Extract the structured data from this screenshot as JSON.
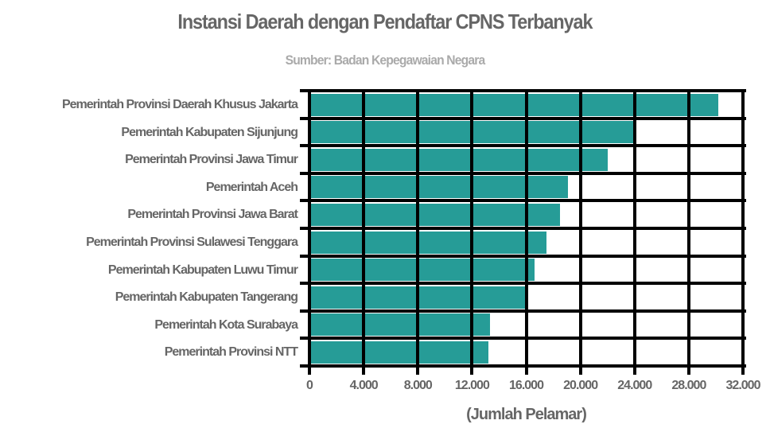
{
  "chart_data": {
    "type": "bar",
    "orientation": "horizontal",
    "title": "Instansi Daerah dengan Pendaftar CPNS Terbanyak",
    "subtitle": "Sumber: Badan Kepegawaian Negara",
    "xlabel": "(Jumlah Pelamar)",
    "ylabel": "",
    "xlim": [
      0,
      32000
    ],
    "xticks": [
      0,
      4000,
      8000,
      12000,
      16000,
      20000,
      24000,
      28000,
      32000
    ],
    "xtick_labels": [
      "0",
      "4.000",
      "8.000",
      "12.000",
      "16.000",
      "20.000",
      "24.000",
      "28.000",
      "32.000"
    ],
    "grid": true,
    "legend": null,
    "bar_color": "#269c97",
    "categories": [
      "Pemerintah Provinsi Daerah Khusus Jakarta",
      "Pemerintah Kabupaten Sijunjung",
      "Pemerintah Provinsi Jawa Timur",
      "Pemerintah Aceh",
      "Pemerintah Provinsi Jawa Barat",
      "Pemerintah Provinsi Sulawesi Tenggara",
      "Pemerintah Kabupaten Luwu Timur",
      "Pemerintah Kabupaten Tangerang",
      "Pemerintah Kota Surabaya",
      "Pemerintah Provinsi NTT"
    ],
    "values": [
      30200,
      23900,
      22000,
      19100,
      18500,
      17500,
      16600,
      16000,
      13300,
      13200
    ]
  }
}
